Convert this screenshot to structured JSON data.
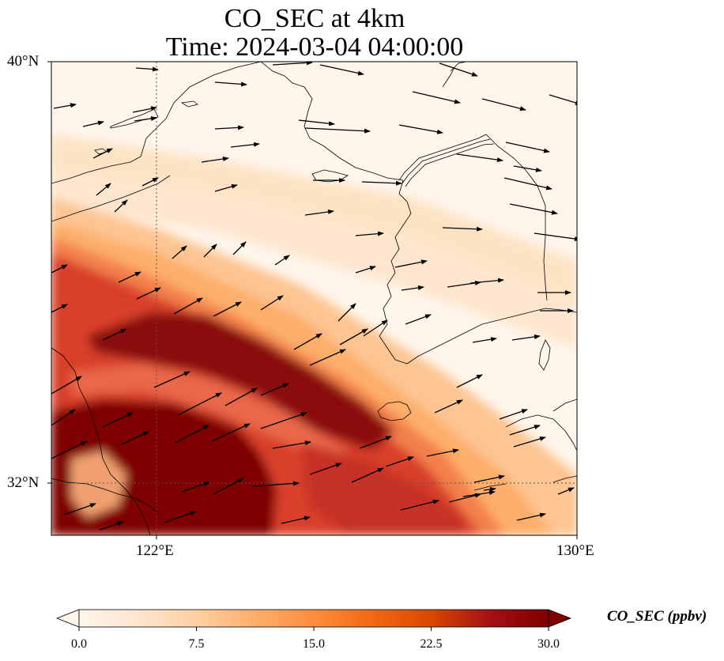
{
  "title": {
    "line1": "CO_SEC at 4km",
    "line2": "Time: 2024-03-04 04:00:00"
  },
  "map": {
    "lon_range": [
      120,
      130
    ],
    "lat_range": [
      31,
      40
    ],
    "lat_ticks": [
      {
        "value": 40,
        "label": "40°N"
      },
      {
        "value": 32,
        "label": "32°N"
      }
    ],
    "lon_ticks": [
      {
        "value": 122,
        "label": "122°E"
      },
      {
        "value": 130,
        "label": "130°E"
      }
    ],
    "gridlines": true,
    "field_icons": {
      "wind": "wind-vector-arrows",
      "coast": "coastline"
    }
  },
  "colorbar": {
    "label": "CO_SEC (ppbv)",
    "min": 0,
    "max": 30,
    "ticks": [
      "0.0",
      "7.5",
      "15.0",
      "22.5",
      "30.0"
    ],
    "colormap": [
      "#fff5eb",
      "#fee6ce",
      "#fdd0a2",
      "#fdae6b",
      "#fd8d3c",
      "#f16913",
      "#d94801",
      "#a50f15",
      "#7f0000"
    ],
    "extend": "both"
  }
}
